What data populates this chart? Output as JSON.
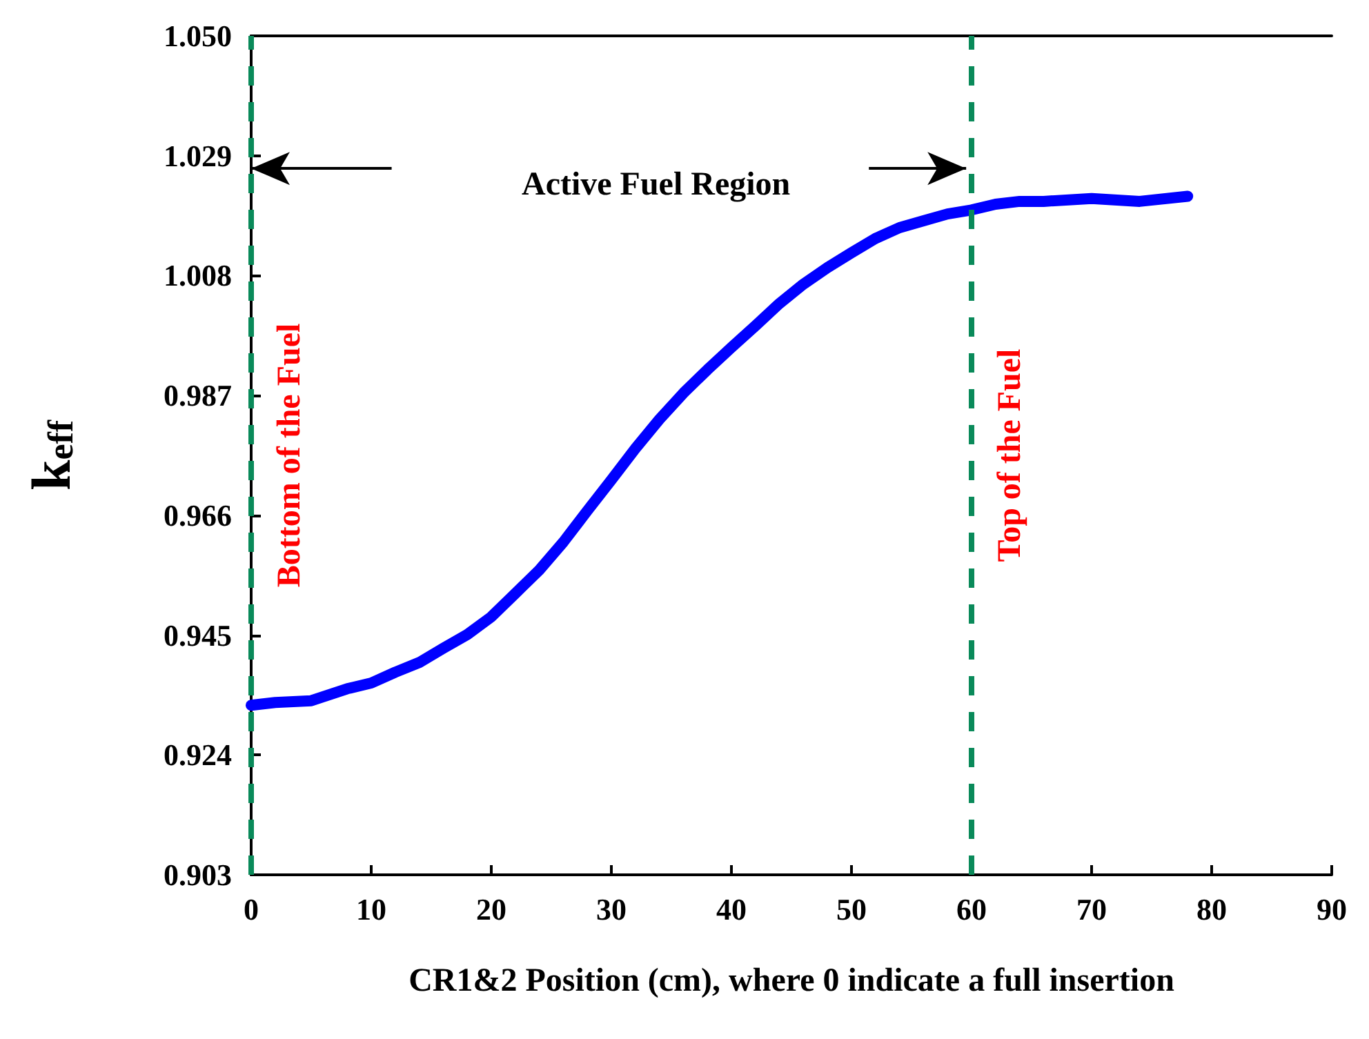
{
  "chart_data": {
    "type": "line",
    "xlabel": "CR1&2 Position (cm), where 0 indicate a full insertion",
    "ylabel": "k$_{eff}$",
    "x": [
      0,
      2,
      5,
      8,
      10,
      12,
      14,
      16,
      18,
      20,
      22,
      24,
      26,
      28,
      30,
      32,
      34,
      36,
      38,
      40,
      42,
      44,
      46,
      48,
      50,
      52,
      54,
      56,
      58,
      60,
      62,
      64,
      66,
      70,
      74,
      78
    ],
    "series": [
      {
        "color": "#0000ff",
        "values": [
          0.9327,
          0.9332,
          0.9335,
          0.9356,
          0.9366,
          0.9385,
          0.9402,
          0.9427,
          0.9451,
          0.9482,
          0.9523,
          0.9564,
          0.9613,
          0.9668,
          0.9722,
          0.9777,
          0.9828,
          0.9874,
          0.9915,
          0.9954,
          0.9992,
          1.0031,
          1.0065,
          1.0094,
          1.012,
          1.0145,
          1.0164,
          1.0176,
          1.0188,
          1.0195,
          1.0205,
          1.021,
          1.021,
          1.0215,
          1.021,
          1.0219
        ]
      }
    ],
    "xlim": [
      0,
      90
    ],
    "xticks": [
      0,
      10,
      20,
      30,
      40,
      50,
      60,
      70,
      80,
      90
    ],
    "ylim": [
      0.903,
      1.05
    ],
    "yticks": [
      {
        "value": 0.903,
        "label": "0.903"
      },
      {
        "value": 0.924,
        "label": "0.924"
      },
      {
        "value": 0.945,
        "label": "0.945"
      },
      {
        "value": 0.966,
        "label": "0.966"
      },
      {
        "value": 0.987,
        "label": "0.987"
      },
      {
        "value": 1.008,
        "label": "1.008"
      },
      {
        "value": 1.029,
        "label": "1.029"
      },
      {
        "value": 1.05,
        "label": "1.050"
      }
    ],
    "ref_lines": [
      {
        "axis": "x",
        "value": 0,
        "label": "Bottom of the Fuel",
        "color": "#0a8a5a",
        "line_style": "dashed"
      },
      {
        "axis": "x",
        "value": 60,
        "label": "Top of the Fuel",
        "color": "#0a8a5a",
        "line_style": "dashed"
      }
    ],
    "annotations": [
      "Active Fuel Region"
    ],
    "grid": false,
    "line_style": "solid"
  }
}
